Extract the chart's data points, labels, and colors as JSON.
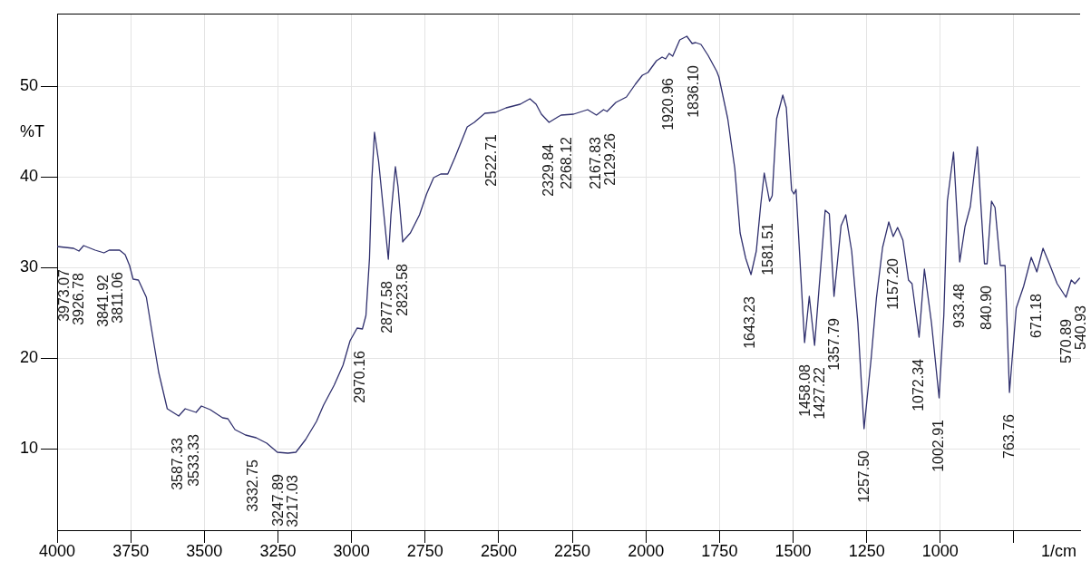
{
  "chart_data": {
    "type": "line",
    "xlabel": "1/cm",
    "ylabel": "%T",
    "color": "#30306e",
    "x": [
      4000,
      3944,
      3926,
      3910,
      3871,
      3841,
      3823,
      3788,
      3769,
      3754,
      3742,
      3724,
      3697,
      3679,
      3655,
      3626,
      3587,
      3565,
      3528,
      3510,
      3480,
      3438,
      3420,
      3396,
      3360,
      3324,
      3288,
      3252,
      3216,
      3189,
      3156,
      3119,
      3095,
      3059,
      3029,
      3005,
      2981,
      2963,
      2951,
      2939,
      2931,
      2922,
      2908,
      2890,
      2875,
      2866,
      2851,
      2842,
      2826,
      2822,
      2800,
      2769,
      2745,
      2721,
      2697,
      2673,
      2649,
      2607,
      2583,
      2547,
      2511,
      2475,
      2427,
      2394,
      2373,
      2355,
      2329,
      2299,
      2288,
      2246,
      2198,
      2168,
      2144,
      2132,
      2102,
      2066,
      2036,
      2012,
      1993,
      1964,
      1945,
      1933,
      1921,
      1909,
      1885,
      1861,
      1843,
      1831,
      1813,
      1789,
      1759,
      1752,
      1722,
      1698,
      1680,
      1661,
      1643,
      1625,
      1610,
      1598,
      1580,
      1571,
      1556,
      1535,
      1523,
      1505,
      1497,
      1490,
      1475,
      1461,
      1445,
      1427,
      1391,
      1377,
      1361,
      1337,
      1321,
      1301,
      1280,
      1259,
      1235,
      1217,
      1196,
      1175,
      1160,
      1145,
      1127,
      1108,
      1096,
      1072,
      1054,
      1030,
      1004,
      988,
      976,
      955,
      934,
      916,
      898,
      874,
      850,
      841,
      826,
      814,
      796,
      780,
      765,
      742,
      717,
      691,
      672,
      651,
      627,
      603,
      573,
      555,
      543,
      527
    ],
    "values": [
      32.3,
      32.1,
      31.8,
      32.4,
      31.9,
      31.6,
      31.9,
      31.9,
      31.4,
      30.2,
      28.7,
      28.6,
      26.7,
      23.1,
      18.4,
      14.4,
      13.6,
      14.4,
      14.0,
      14.7,
      14.3,
      13.4,
      13.3,
      12.1,
      11.5,
      11.2,
      10.6,
      9.6,
      9.5,
      9.6,
      11.0,
      13.0,
      14.8,
      17.0,
      19.2,
      21.9,
      23.3,
      23.2,
      24.7,
      31.0,
      39.7,
      44.9,
      41.7,
      35.8,
      30.9,
      35.8,
      41.1,
      38.9,
      32.8,
      33.0,
      33.8,
      35.8,
      38.1,
      39.9,
      40.3,
      40.3,
      42.1,
      45.5,
      46.0,
      47.0,
      47.1,
      47.6,
      48.0,
      48.6,
      48.0,
      46.9,
      46.0,
      46.6,
      46.8,
      46.9,
      47.4,
      46.8,
      47.4,
      47.2,
      48.2,
      48.8,
      50.2,
      51.2,
      51.5,
      52.8,
      53.2,
      53.0,
      53.6,
      53.3,
      55.1,
      55.5,
      54.7,
      54.8,
      54.6,
      53.4,
      51.6,
      51.0,
      46.4,
      40.9,
      33.8,
      31.0,
      29.2,
      31.8,
      36.9,
      40.4,
      37.3,
      37.9,
      46.4,
      49.0,
      47.6,
      38.5,
      38.1,
      38.6,
      29.8,
      21.7,
      26.8,
      21.4,
      36.3,
      35.9,
      26.8,
      34.6,
      35.8,
      31.8,
      23.9,
      12.2,
      19.9,
      26.6,
      32.2,
      35.0,
      33.4,
      34.4,
      33.0,
      28.6,
      28.2,
      22.3,
      29.8,
      23.9,
      15.6,
      24.7,
      37.3,
      42.7,
      30.6,
      34.5,
      36.7,
      43.3,
      30.4,
      30.4,
      37.3,
      36.6,
      30.2,
      30.2,
      16.2,
      25.5,
      27.9,
      31.1,
      29.5,
      32.1,
      30.2,
      28.2,
      26.7,
      28.6,
      28.2,
      28.8
    ],
    "xlim": [
      4000,
      525
    ],
    "xticks": [
      4000,
      3750,
      3500,
      3250,
      3000,
      2750,
      2500,
      2250,
      2000,
      1750,
      1500,
      1250,
      1000,
      {
        "value": 750,
        "label": null
      }
    ],
    "ylim": [
      1,
      58
    ],
    "yticks": [
      10,
      20,
      30,
      40,
      50
    ],
    "grid": true,
    "annotations": [
      {
        "text": "3973.07",
        "x": 3973.07,
        "y": 32.2
      },
      {
        "text": "3926.78",
        "x": 3926.78,
        "y": 31.8
      },
      {
        "text": "3841.92",
        "x": 3841.92,
        "y": 31.6
      },
      {
        "text": "3811.06",
        "x": 3811.06,
        "y": 31.9
      },
      {
        "text": "3587.33",
        "x": 3587.33,
        "y": 13.6
      },
      {
        "text": "3533.33",
        "x": 3533.33,
        "y": 14.0
      },
      {
        "text": "3332.75",
        "x": 3332.75,
        "y": 11.2
      },
      {
        "text": "3247.89",
        "x": 3247.89,
        "y": 9.6
      },
      {
        "text": "3217.03",
        "x": 3217.03,
        "y": 9.5
      },
      {
        "text": "2970.16",
        "x": 2970.16,
        "y": 23.2
      },
      {
        "text": "2877.58",
        "x": 2877.58,
        "y": 30.9
      },
      {
        "text": "2823.58",
        "x": 2823.58,
        "y": 32.8
      },
      {
        "text": "2522.71",
        "x": 2522.71,
        "y": 47.1
      },
      {
        "text": "2329.84",
        "x": 2329.84,
        "y": 46.0
      },
      {
        "text": "2268.12",
        "x": 2268.12,
        "y": 46.8
      },
      {
        "text": "2167.83",
        "x": 2167.83,
        "y": 46.8
      },
      {
        "text": "2129.26",
        "x": 2129.26,
        "y": 47.2
      },
      {
        "text": "1920.96",
        "x": 1920.96,
        "y": 53.3
      },
      {
        "text": "1836.10",
        "x": 1836.1,
        "y": 54.7
      },
      {
        "text": "1643.23",
        "x": 1643.23,
        "y": 29.2
      },
      {
        "text": "1581.51",
        "x": 1581.51,
        "y": 37.3
      },
      {
        "text": "1458.08",
        "x": 1458.08,
        "y": 21.7
      },
      {
        "text": "1427.22",
        "x": 1427.22,
        "y": 21.4
      },
      {
        "text": "1357.79",
        "x": 1357.79,
        "y": 26.8
      },
      {
        "text": "1257.50",
        "x": 1257.5,
        "y": 12.2
      },
      {
        "text": "1157.20",
        "x": 1157.2,
        "y": 33.4
      },
      {
        "text": "1072.34",
        "x": 1072.34,
        "y": 22.3
      },
      {
        "text": "1002.91",
        "x": 1002.91,
        "y": 15.6
      },
      {
        "text": "933.48",
        "x": 933.48,
        "y": 30.6
      },
      {
        "text": "840.90",
        "x": 840.9,
        "y": 30.4
      },
      {
        "text": "763.76",
        "x": 763.76,
        "y": 16.2
      },
      {
        "text": "671.18",
        "x": 671.18,
        "y": 29.5
      },
      {
        "text": "570.89",
        "x": 570.89,
        "y": 26.7
      },
      {
        "text": "540.93",
        "x": 540.93,
        "y": 28.2
      }
    ]
  }
}
